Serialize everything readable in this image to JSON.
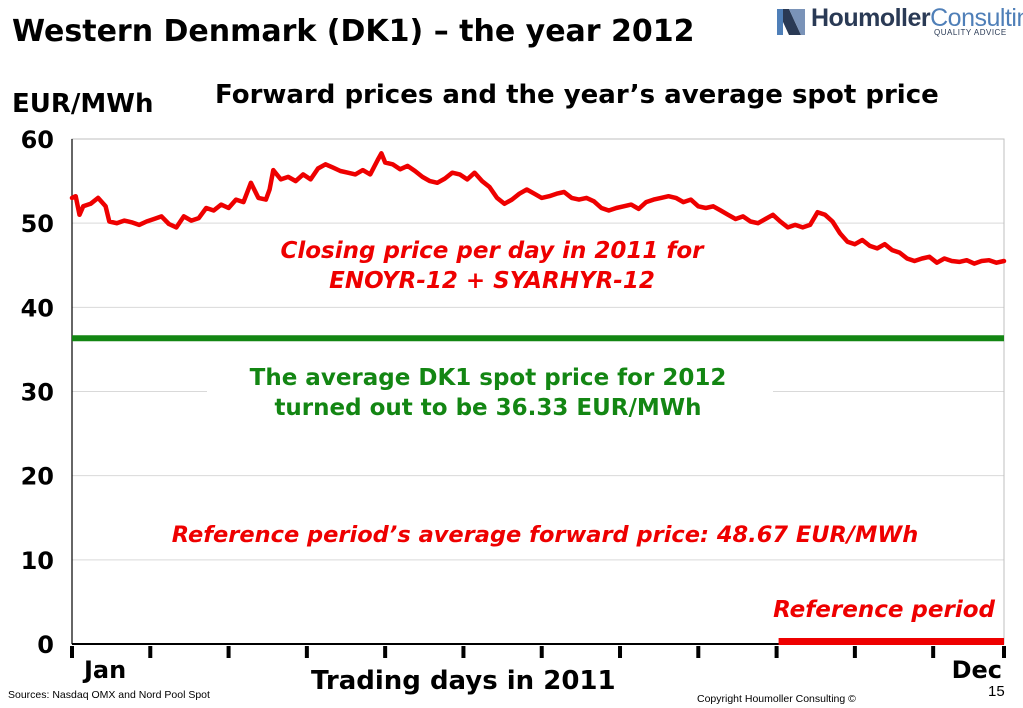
{
  "slide": {
    "title": "Western Denmark (DK1)  – the year 2012",
    "subtitle": "Forward prices and the year’s average spot price",
    "y_unit": "EUR/MWh",
    "x_axis_title": "Trading days in 2011",
    "sources": "Sources: Nasdaq OMX and Nord Pool Spot",
    "copyright": "Copyright Houmoller Consulting ©",
    "page_number": "15"
  },
  "logo": {
    "word_bold": "Houmoller",
    "word_light": "Consulting",
    "tagline": "QUALITY ADVICE",
    "colors": {
      "dark": "#2a3a55",
      "light": "#4f7fb8"
    }
  },
  "chart_data": {
    "type": "line",
    "title": "Forward prices and the year’s average spot price",
    "xlabel": "Trading days in 2011",
    "ylabel": "EUR/MWh",
    "ylim": [
      0,
      60
    ],
    "yticks": [
      0,
      10,
      20,
      30,
      40,
      50,
      60
    ],
    "xlim": [
      0,
      250
    ],
    "x_tick_labels": {
      "first": "Jan",
      "last": "Dec"
    },
    "month_tick_days": [
      0,
      21,
      42,
      63,
      84,
      105,
      126,
      147,
      168,
      189,
      210,
      231,
      250
    ],
    "grid": "horizontal",
    "colors": {
      "forward": "#ee0000",
      "spot": "#138613",
      "reference": "#ee0000"
    },
    "series": [
      {
        "type": "line",
        "x": [
          0,
          1,
          2,
          3,
          5,
          7,
          9,
          10,
          12,
          14,
          16,
          18,
          20,
          22,
          24,
          26,
          28,
          30,
          32,
          34,
          36,
          38,
          40,
          42,
          44,
          46,
          48,
          50,
          52,
          53,
          54,
          56,
          58,
          60,
          62,
          64,
          66,
          68,
          70,
          72,
          74,
          76,
          78,
          80,
          82,
          83,
          84,
          86,
          88,
          90,
          92,
          94,
          96,
          98,
          100,
          102,
          104,
          106,
          108,
          110,
          112,
          114,
          116,
          118,
          120,
          122,
          124,
          126,
          128,
          130,
          132,
          134,
          136,
          138,
          140,
          142,
          144,
          146,
          148,
          150,
          152,
          154,
          156,
          158,
          160,
          162,
          164,
          166,
          168,
          170,
          172,
          174,
          176,
          178,
          180,
          182,
          184,
          186,
          188,
          190,
          192,
          194,
          196,
          198,
          200,
          202,
          204,
          206,
          208,
          210,
          212,
          214,
          216,
          218,
          220,
          222,
          224,
          226,
          228,
          230,
          232,
          234,
          236,
          238,
          240,
          242,
          244,
          246,
          248,
          250
        ],
        "y": [
          53.0,
          53.2,
          51.0,
          52.0,
          52.3,
          53.0,
          52.0,
          50.2,
          50.0,
          50.3,
          50.1,
          49.8,
          50.2,
          50.5,
          50.8,
          49.9,
          49.5,
          50.8,
          50.3,
          50.6,
          51.8,
          51.5,
          52.2,
          51.8,
          52.8,
          52.5,
          54.8,
          53.0,
          52.8,
          54.0,
          56.3,
          55.2,
          55.5,
          55.0,
          55.8,
          55.2,
          56.5,
          57.0,
          56.6,
          56.2,
          56.0,
          55.8,
          56.3,
          55.8,
          57.5,
          58.3,
          57.2,
          57.0,
          56.4,
          56.8,
          56.2,
          55.5,
          55.0,
          54.8,
          55.3,
          56.0,
          55.8,
          55.2,
          56.0,
          55.0,
          54.3,
          53.0,
          52.3,
          52.8,
          53.5,
          54.0,
          53.5,
          53.0,
          53.2,
          53.5,
          53.7,
          53.0,
          52.8,
          53.0,
          52.6,
          51.8,
          51.5,
          51.8,
          52.0,
          52.2,
          51.7,
          52.5,
          52.8,
          53.0,
          53.2,
          53.0,
          52.5,
          52.8,
          52.0,
          51.8,
          52.0,
          51.5,
          51.0,
          50.5,
          50.8,
          50.2,
          50.0,
          50.5,
          51.0,
          50.2,
          49.5,
          49.8,
          49.5,
          49.8,
          51.3,
          51.0,
          50.2,
          48.8,
          47.8,
          47.5,
          48.0,
          47.3,
          47.0,
          47.5,
          46.8,
          46.5,
          45.8,
          45.5,
          45.8,
          46.0,
          45.3,
          45.8,
          45.5,
          45.4,
          45.6,
          45.2,
          45.5,
          45.6,
          45.3,
          45.5
        ],
        "y_values_scale_note": ""
      },
      {
        "type": "hline",
        "value": 36.33,
        "x_range": [
          0,
          250
        ]
      },
      {
        "type": "segment",
        "value": 0.3,
        "x_range": [
          189,
          250
        ]
      }
    ],
    "annotations": {
      "forward_label_1": "Closing price per day in 2011 for",
      "forward_label_2": "ENOYR-12 + SYARHYR-12",
      "spot_label_1": "The average DK1 spot price for 2012",
      "spot_label_2": "turned out to be 36.33 EUR/MWh",
      "reference_avg": "Reference period’s average forward price:  48.67 EUR/MWh",
      "reference_period": "Reference period"
    }
  }
}
